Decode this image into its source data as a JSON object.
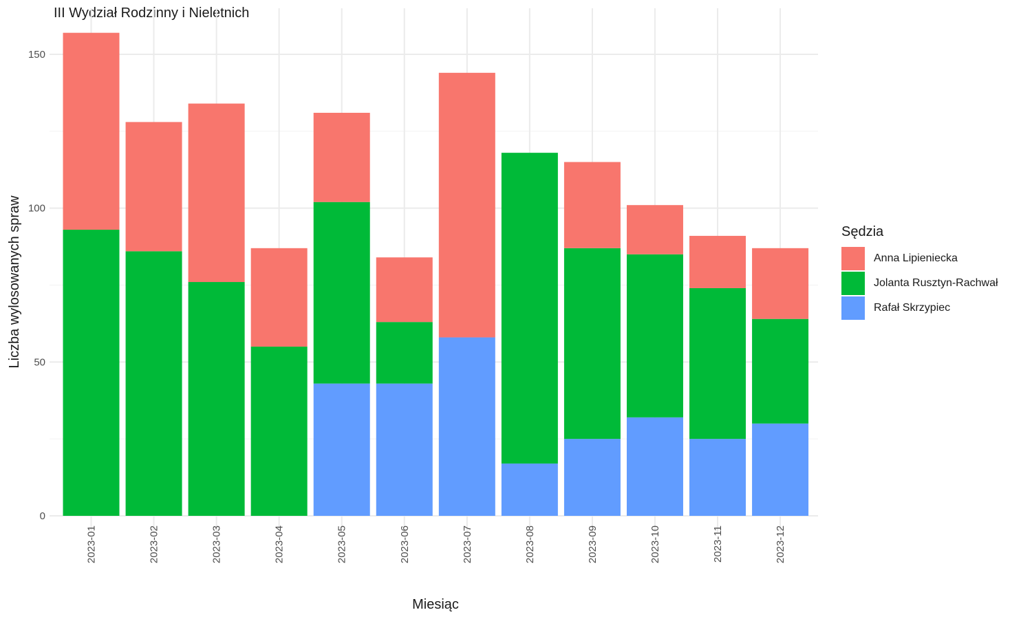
{
  "chart_data": {
    "type": "bar",
    "stacked": true,
    "title": "III Wydział Rodzinny i Nieletnich",
    "xlabel": "Miesiąc",
    "ylabel": "Liczba wylosowanych spraw",
    "ylim": [
      0,
      158
    ],
    "yticks": [
      0,
      50,
      100,
      150
    ],
    "grid": true,
    "legend_position": "right",
    "legend_title": "Sędzia",
    "categories": [
      "2023-01",
      "2023-02",
      "2023-03",
      "2023-04",
      "2023-05",
      "2023-06",
      "2023-07",
      "2023-08",
      "2023-09",
      "2023-10",
      "2023-11",
      "2023-12"
    ],
    "series": [
      {
        "name": "Rafał Skrzypiec",
        "color": "#619CFF",
        "values": [
          0,
          0,
          0,
          0,
          43,
          43,
          58,
          17,
          25,
          32,
          25,
          30
        ]
      },
      {
        "name": "Jolanta Rusztyn-Rachwał",
        "color": "#00BA38",
        "values": [
          93,
          86,
          76,
          55,
          59,
          20,
          0,
          101,
          62,
          53,
          49,
          34
        ]
      },
      {
        "name": "Anna Lipieniecka",
        "color": "#F8766D",
        "values": [
          64,
          42,
          58,
          32,
          29,
          21,
          86,
          0,
          28,
          16,
          17,
          23
        ]
      }
    ],
    "legend_order": [
      "Anna Lipieniecka",
      "Jolanta Rusztyn-Rachwał",
      "Rafał Skrzypiec"
    ]
  }
}
